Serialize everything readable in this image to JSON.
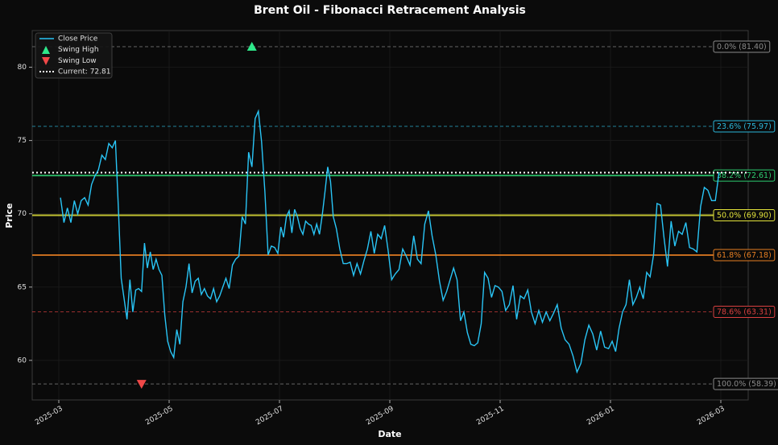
{
  "chart_data": {
    "type": "line",
    "title": "Brent Oil - Fibonacci Retracement Analysis",
    "xlabel": "Date",
    "ylabel": "Price",
    "xticks": [
      "2025-03",
      "2025-05",
      "2025-07",
      "2025-09",
      "2025-11",
      "2026-01",
      "2026-03"
    ],
    "ylim": [
      57.3,
      82.5
    ],
    "yticks": [
      60,
      65,
      70,
      75,
      80
    ],
    "grid": true,
    "legend": "upper left",
    "x": [
      "2025-03",
      "2025-03",
      "2025-03",
      "2025-03",
      "2025-03",
      "2025-03",
      "2025-03",
      "2025-03",
      "2025-03",
      "2025-03",
      "2025-03",
      "2025-03",
      "2025-03",
      "2025-03",
      "2025-03",
      "2025-03",
      "2025-04",
      "2025-04",
      "2025-04",
      "2025-04",
      "2025-04",
      "2025-04",
      "2025-04",
      "2025-04",
      "2025-04",
      "2025-04",
      "2025-04",
      "2025-04",
      "2025-04",
      "2025-04",
      "2025-04",
      "2025-04",
      "2025-04",
      "2025-04",
      "2025-04",
      "2025-05",
      "2025-05",
      "2025-05",
      "2025-05",
      "2025-05",
      "2025-05",
      "2025-05",
      "2025-05",
      "2025-05",
      "2025-05",
      "2025-05",
      "2025-05",
      "2025-05",
      "2025-05",
      "2025-05",
      "2025-05",
      "2025-05",
      "2025-05",
      "2025-06",
      "2025-06",
      "2025-06",
      "2025-06",
      "2025-06",
      "2025-06",
      "2025-06",
      "2025-06",
      "2025-06",
      "2025-06",
      "2025-06",
      "2025-06",
      "2025-06",
      "2025-06",
      "2025-06",
      "2025-06",
      "2025-06",
      "2025-07",
      "2025-07",
      "2025-07",
      "2025-07",
      "2025-07",
      "2025-07",
      "2025-07",
      "2025-07",
      "2025-07",
      "2025-07",
      "2025-07",
      "2025-07",
      "2025-07",
      "2025-07",
      "2025-07",
      "2025-07",
      "2025-07",
      "2025-07",
      "2025-07",
      "2025-07",
      "2025-08",
      "2025-08",
      "2025-08",
      "2025-08",
      "2025-08",
      "2025-08",
      "2025-08",
      "2025-08",
      "2025-08",
      "2025-08",
      "2025-08",
      "2025-08",
      "2025-08",
      "2025-08",
      "2025-08",
      "2025-08",
      "2025-09",
      "2025-09",
      "2025-09",
      "2025-09",
      "2025-09",
      "2025-09",
      "2025-09",
      "2025-09",
      "2025-09",
      "2025-09",
      "2025-09",
      "2025-09",
      "2025-09",
      "2025-09",
      "2025-09",
      "2025-10",
      "2025-10",
      "2025-10",
      "2025-10",
      "2025-10",
      "2025-10",
      "2025-10",
      "2025-10",
      "2025-10",
      "2025-10",
      "2025-10",
      "2025-10",
      "2025-10",
      "2025-10",
      "2025-10",
      "2025-10",
      "2025-11",
      "2025-11",
      "2025-11",
      "2025-11",
      "2025-11",
      "2025-11",
      "2025-11",
      "2025-11",
      "2025-11",
      "2025-11",
      "2025-11",
      "2025-11",
      "2025-11",
      "2025-11",
      "2025-11",
      "2025-12",
      "2025-12",
      "2025-12",
      "2025-12",
      "2025-12",
      "2025-12",
      "2025-12",
      "2025-12",
      "2025-12",
      "2025-12",
      "2025-12",
      "2025-12",
      "2025-12",
      "2025-12",
      "2026-01",
      "2026-01",
      "2026-01",
      "2026-01",
      "2026-01",
      "2026-01",
      "2026-01",
      "2026-01",
      "2026-01",
      "2026-01",
      "2026-01",
      "2026-01",
      "2026-01",
      "2026-01",
      "2026-01",
      "2026-01",
      "2026-02",
      "2026-02",
      "2026-02",
      "2026-02",
      "2026-02",
      "2026-02",
      "2026-02",
      "2026-02",
      "2026-02",
      "2026-02",
      "2026-02",
      "2026-02",
      "2026-02",
      "2026-02",
      "2026-02"
    ],
    "series": [
      {
        "name": "Close Price",
        "color": "#29c5f6",
        "values": [
          71.1,
          69.4,
          70.4,
          69.4,
          70.9,
          70.0,
          70.9,
          71.1,
          70.6,
          72.0,
          72.6,
          73.0,
          74.0,
          73.7,
          74.8,
          74.5,
          75.0,
          70.5,
          65.6,
          64.2,
          62.8,
          65.5,
          63.3,
          64.8,
          64.9,
          64.7,
          68.0,
          66.3,
          67.4,
          66.2,
          66.9,
          66.2,
          65.8,
          63.1,
          61.3,
          60.6,
          60.2,
          62.1,
          61.1,
          64.0,
          65.0,
          66.6,
          64.6,
          65.4,
          65.6,
          64.5,
          64.9,
          64.4,
          64.2,
          64.9,
          64.0,
          64.4,
          65.0,
          65.6,
          64.9,
          66.5,
          66.9,
          67.1,
          69.8,
          69.3,
          74.2,
          73.2,
          76.5,
          77.0,
          74.9,
          71.5,
          67.2,
          67.8,
          67.7,
          67.3,
          69.1,
          68.4,
          69.8,
          70.2,
          68.7,
          70.3,
          69.8,
          69.0,
          68.6,
          69.5,
          69.3,
          69.2,
          68.6,
          69.3,
          68.6,
          69.9,
          71.5,
          73.2,
          72.2,
          69.8,
          69.0,
          67.6,
          66.6,
          66.6,
          66.7,
          65.8,
          66.6,
          65.9,
          66.8,
          67.6,
          68.8,
          67.3,
          68.6,
          68.3,
          69.2,
          67.5,
          65.5,
          65.9,
          66.2,
          67.6,
          67.1,
          66.5,
          68.5,
          66.9,
          66.6,
          69.3,
          70.2,
          68.5,
          67.2,
          65.4,
          64.1,
          64.7,
          65.5,
          66.3,
          65.5,
          62.7,
          63.3,
          61.9,
          61.1,
          61.0,
          61.2,
          62.5,
          66.0,
          65.6,
          64.3,
          65.1,
          65.0,
          64.7,
          63.4,
          63.8,
          65.1,
          62.8,
          64.4,
          64.2,
          64.8,
          63.3,
          62.5,
          63.4,
          62.6,
          63.3,
          62.7,
          63.2,
          63.8,
          62.2,
          61.4,
          61.1,
          60.3,
          59.2,
          59.8,
          61.4,
          62.4,
          61.8,
          60.7,
          62.0,
          60.9,
          60.8,
          61.3,
          60.6,
          62.2,
          63.3,
          63.8,
          65.5,
          63.8,
          64.3,
          65.0,
          64.2,
          66.0,
          65.7,
          67.2,
          70.7,
          70.6,
          68.4,
          66.4,
          69.5,
          67.8,
          68.8,
          68.6,
          69.4,
          67.7,
          67.6,
          67.4,
          70.5,
          71.8,
          71.6,
          70.9,
          70.9,
          72.8
        ]
      }
    ],
    "swing_high": {
      "name": "Swing High",
      "x": "2025-06",
      "value": 81.4,
      "color": "#2ee88a"
    },
    "swing_low": {
      "name": "Swing Low",
      "x": "2025-04",
      "value": 58.39,
      "color": "#f04848"
    },
    "current": {
      "label": "Current: 72.81",
      "value": 72.81,
      "color": "#ffffff"
    },
    "levels": [
      {
        "label": "0.0% (81.40)",
        "value": 81.4,
        "color": "#8a8a8a",
        "style": "dashed"
      },
      {
        "label": "23.6% (75.97)",
        "value": 75.97,
        "color": "#2bb5d8",
        "style": "dashed"
      },
      {
        "label": "38.2% (72.61)",
        "value": 72.61,
        "color": "#2ecc71",
        "style": "solid"
      },
      {
        "label": "50.0% (69.90)",
        "value": 69.9,
        "color": "#e2e23a",
        "style": "solid"
      },
      {
        "label": "61.8% (67.18)",
        "value": 67.18,
        "color": "#e67e22",
        "style": "solid"
      },
      {
        "label": "78.6% (63.31)",
        "value": 63.31,
        "color": "#d94040",
        "style": "dashed"
      },
      {
        "label": "100.0% (58.39)",
        "value": 58.39,
        "color": "#8a8a8a",
        "style": "dashed"
      }
    ]
  }
}
